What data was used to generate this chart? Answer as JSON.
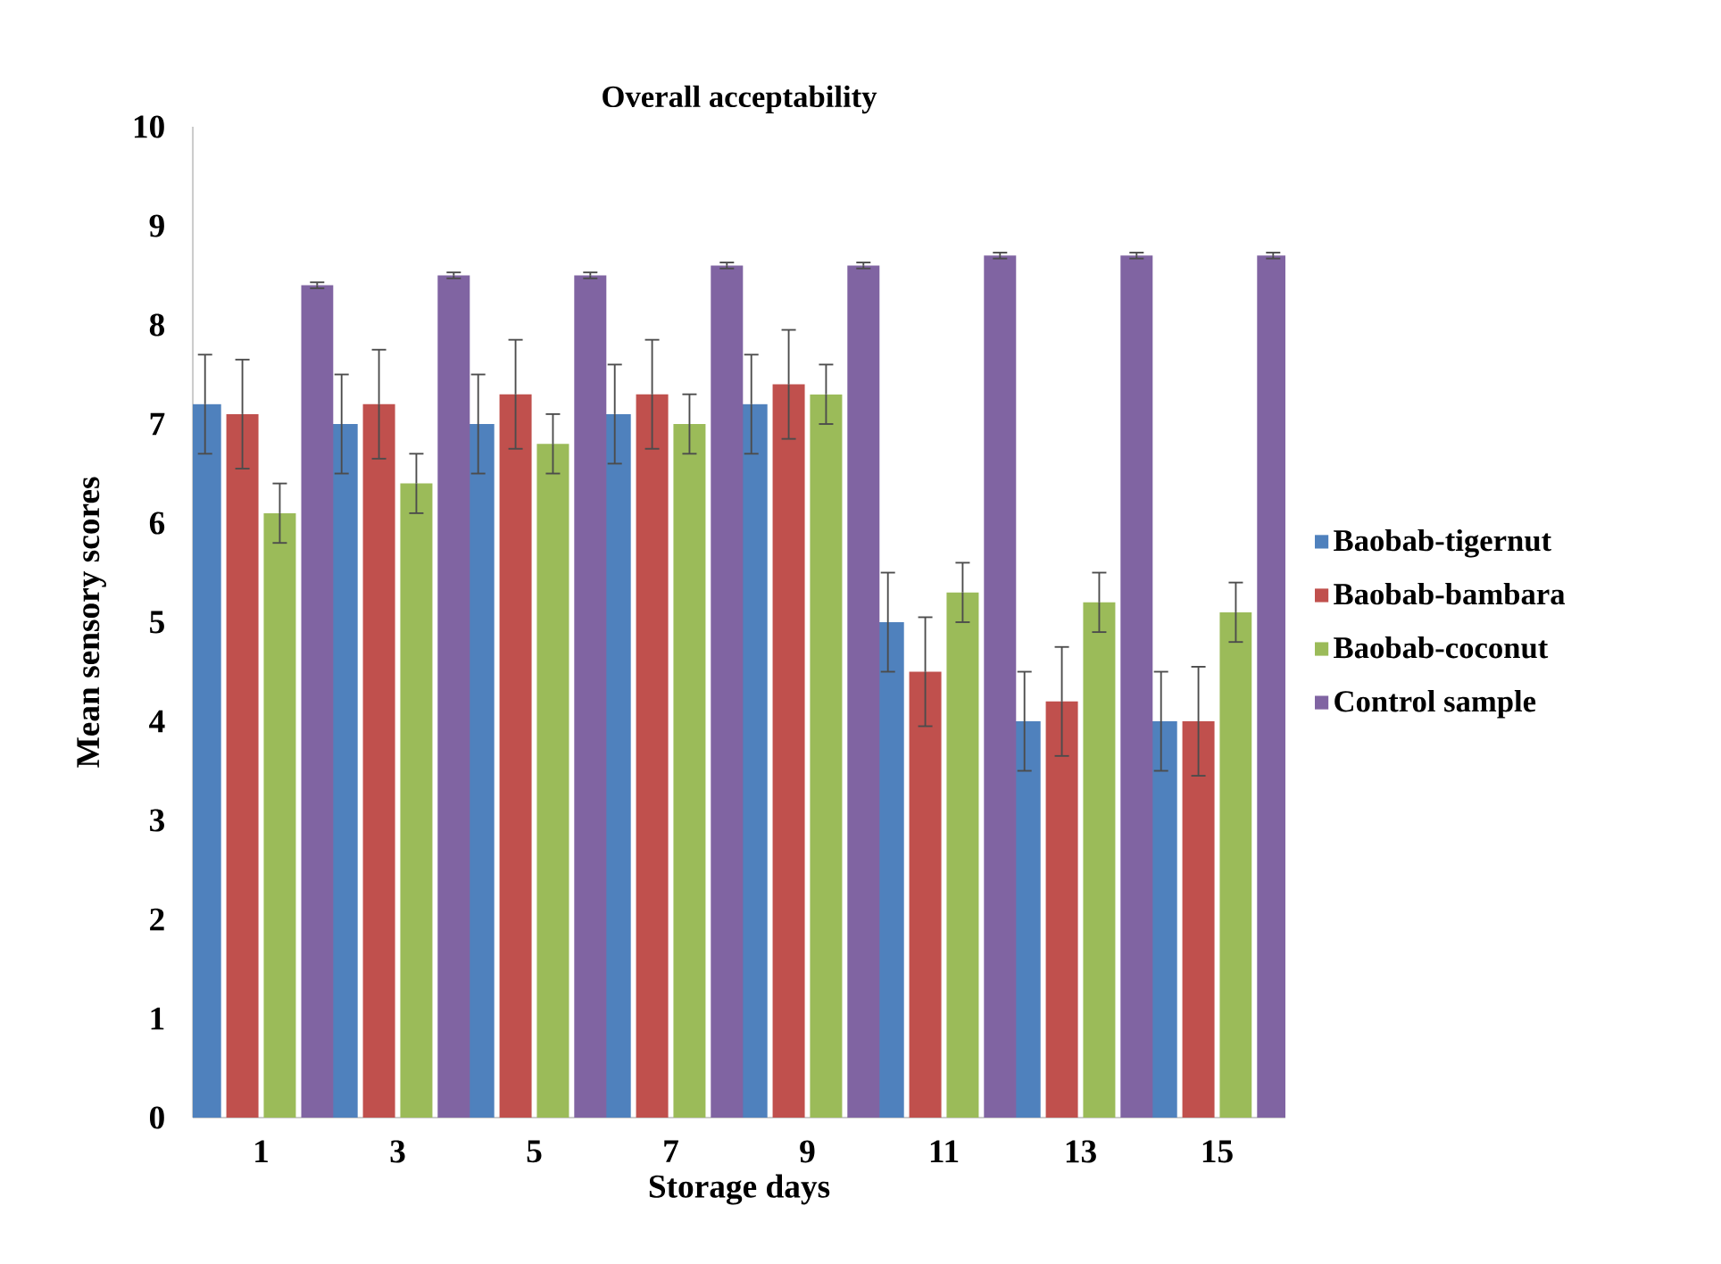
{
  "chart_data": {
    "type": "bar",
    "title": "Overall acceptability",
    "xlabel": "Storage days",
    "ylabel": "Mean sensory scores",
    "categories": [
      "1",
      "3",
      "5",
      "7",
      "9",
      "11",
      "13",
      "15"
    ],
    "series": [
      {
        "name": "Baobab-tigernut",
        "color": "#4f81bd",
        "values": [
          7.2,
          7.0,
          7.0,
          7.1,
          7.2,
          5.0,
          4.0,
          4.0
        ],
        "errors": [
          0.5,
          0.5,
          0.5,
          0.5,
          0.5,
          0.5,
          0.5,
          0.5
        ]
      },
      {
        "name": "Baobab-bambara",
        "color": "#c0504d",
        "values": [
          7.1,
          7.2,
          7.3,
          7.3,
          7.4,
          4.5,
          4.2,
          4.0
        ],
        "errors": [
          0.55,
          0.55,
          0.55,
          0.55,
          0.55,
          0.55,
          0.55,
          0.55
        ]
      },
      {
        "name": "Baobab-coconut",
        "color": "#9bbb59",
        "values": [
          6.1,
          6.4,
          6.8,
          7.0,
          7.3,
          5.3,
          5.2,
          5.1
        ],
        "errors": [
          0.3,
          0.3,
          0.3,
          0.3,
          0.3,
          0.3,
          0.3,
          0.3
        ]
      },
      {
        "name": "Control sample",
        "color": "#8064a2",
        "values": [
          8.4,
          8.5,
          8.5,
          8.6,
          8.6,
          8.7,
          8.7,
          8.7
        ],
        "errors": [
          0.03,
          0.03,
          0.03,
          0.03,
          0.03,
          0.03,
          0.03,
          0.03
        ]
      }
    ],
    "ylim": [
      0,
      10
    ],
    "yticks": [
      0,
      1,
      2,
      3,
      4,
      5,
      6,
      7,
      8,
      9,
      10
    ],
    "legend": "right"
  }
}
